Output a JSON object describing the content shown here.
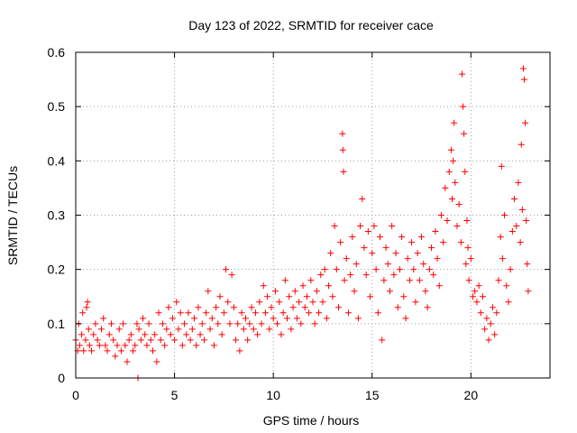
{
  "chart_data": {
    "type": "scatter",
    "title": "Day 123 of 2022, SRMTID for receiver cace",
    "xlabel": "GPS time / hours",
    "ylabel": "SRMTID / TECUs",
    "xlim": [
      0,
      24
    ],
    "ylim": [
      0,
      0.6
    ],
    "xticks": [
      0,
      5,
      10,
      15,
      20
    ],
    "yticks": [
      0,
      0.1,
      0.2,
      0.3,
      0.4,
      0.5,
      0.6
    ],
    "xtick_labels": [
      "0",
      "5",
      "10",
      "15",
      "20"
    ],
    "ytick_labels": [
      "0",
      "0.1",
      "0.2",
      "0.3",
      "0.4",
      "0.5",
      "0.6"
    ],
    "grid": true,
    "marker": "+",
    "color": "#ff0000",
    "series": [
      {
        "name": "SRMTID",
        "points": [
          [
            0.0,
            0.07
          ],
          [
            0.1,
            0.05
          ],
          [
            0.15,
            0.1
          ],
          [
            0.2,
            0.06
          ],
          [
            0.3,
            0.08
          ],
          [
            0.35,
            0.12
          ],
          [
            0.4,
            0.05
          ],
          [
            0.5,
            0.07
          ],
          [
            0.55,
            0.13
          ],
          [
            0.6,
            0.14
          ],
          [
            0.65,
            0.09
          ],
          [
            0.7,
            0.06
          ],
          [
            0.8,
            0.05
          ],
          [
            0.9,
            0.08
          ],
          [
            1.0,
            0.1
          ],
          [
            1.1,
            0.07
          ],
          [
            1.2,
            0.06
          ],
          [
            1.3,
            0.09
          ],
          [
            1.4,
            0.11
          ],
          [
            1.5,
            0.06
          ],
          [
            1.6,
            0.05
          ],
          [
            1.7,
            0.08
          ],
          [
            1.8,
            0.1
          ],
          [
            1.9,
            0.07
          ],
          [
            2.0,
            0.04
          ],
          [
            2.1,
            0.06
          ],
          [
            2.2,
            0.09
          ],
          [
            2.3,
            0.05
          ],
          [
            2.4,
            0.1
          ],
          [
            2.5,
            0.06
          ],
          [
            2.6,
            0.03
          ],
          [
            2.7,
            0.07
          ],
          [
            2.8,
            0.08
          ],
          [
            2.9,
            0.05
          ],
          [
            3.0,
            0.06
          ],
          [
            3.1,
            0.1
          ],
          [
            3.15,
            0.0
          ],
          [
            3.2,
            0.09
          ],
          [
            3.3,
            0.07
          ],
          [
            3.4,
            0.11
          ],
          [
            3.5,
            0.08
          ],
          [
            3.6,
            0.06
          ],
          [
            3.7,
            0.1
          ],
          [
            3.8,
            0.07
          ],
          [
            3.9,
            0.05
          ],
          [
            4.0,
            0.08
          ],
          [
            4.1,
            0.03
          ],
          [
            4.2,
            0.12
          ],
          [
            4.3,
            0.07
          ],
          [
            4.4,
            0.1
          ],
          [
            4.5,
            0.06
          ],
          [
            4.6,
            0.09
          ],
          [
            4.7,
            0.13
          ],
          [
            4.8,
            0.08
          ],
          [
            4.9,
            0.11
          ],
          [
            5.0,
            0.07
          ],
          [
            5.1,
            0.14
          ],
          [
            5.2,
            0.09
          ],
          [
            5.3,
            0.12
          ],
          [
            5.4,
            0.06
          ],
          [
            5.5,
            0.1
          ],
          [
            5.6,
            0.08
          ],
          [
            5.7,
            0.12
          ],
          [
            5.8,
            0.07
          ],
          [
            5.9,
            0.09
          ],
          [
            6.0,
            0.11
          ],
          [
            6.1,
            0.06
          ],
          [
            6.2,
            0.13
          ],
          [
            6.3,
            0.08
          ],
          [
            6.4,
            0.1
          ],
          [
            6.5,
            0.07
          ],
          [
            6.6,
            0.12
          ],
          [
            6.7,
            0.16
          ],
          [
            6.8,
            0.09
          ],
          [
            6.9,
            0.11
          ],
          [
            7.0,
            0.06
          ],
          [
            7.1,
            0.13
          ],
          [
            7.2,
            0.1
          ],
          [
            7.3,
            0.15
          ],
          [
            7.4,
            0.08
          ],
          [
            7.5,
            0.12
          ],
          [
            7.6,
            0.2
          ],
          [
            7.7,
            0.14
          ],
          [
            7.8,
            0.1
          ],
          [
            7.9,
            0.19
          ],
          [
            8.0,
            0.13
          ],
          [
            8.1,
            0.07
          ],
          [
            8.2,
            0.1
          ],
          [
            8.3,
            0.05
          ],
          [
            8.4,
            0.12
          ],
          [
            8.5,
            0.09
          ],
          [
            8.6,
            0.11
          ],
          [
            8.7,
            0.07
          ],
          [
            8.8,
            0.1
          ],
          [
            8.9,
            0.13
          ],
          [
            9.0,
            0.09
          ],
          [
            9.1,
            0.12
          ],
          [
            9.2,
            0.08
          ],
          [
            9.3,
            0.14
          ],
          [
            9.4,
            0.1
          ],
          [
            9.5,
            0.17
          ],
          [
            9.6,
            0.12
          ],
          [
            9.7,
            0.15
          ],
          [
            9.8,
            0.09
          ],
          [
            9.9,
            0.13
          ],
          [
            10.0,
            0.11
          ],
          [
            10.1,
            0.16
          ],
          [
            10.2,
            0.1
          ],
          [
            10.3,
            0.14
          ],
          [
            10.4,
            0.08
          ],
          [
            10.5,
            0.12
          ],
          [
            10.6,
            0.18
          ],
          [
            10.7,
            0.11
          ],
          [
            10.8,
            0.15
          ],
          [
            10.9,
            0.09
          ],
          [
            11.0,
            0.13
          ],
          [
            11.1,
            0.16
          ],
          [
            11.2,
            0.11
          ],
          [
            11.3,
            0.14
          ],
          [
            11.4,
            0.1
          ],
          [
            11.5,
            0.17
          ],
          [
            11.6,
            0.13
          ],
          [
            11.7,
            0.15
          ],
          [
            11.8,
            0.12
          ],
          [
            11.9,
            0.18
          ],
          [
            12.0,
            0.14
          ],
          [
            12.1,
            0.1
          ],
          [
            12.2,
            0.16
          ],
          [
            12.3,
            0.12
          ],
          [
            12.4,
            0.19
          ],
          [
            12.5,
            0.14
          ],
          [
            12.6,
            0.2
          ],
          [
            12.7,
            0.11
          ],
          [
            12.8,
            0.17
          ],
          [
            12.9,
            0.23
          ],
          [
            13.0,
            0.15
          ],
          [
            13.1,
            0.28
          ],
          [
            13.2,
            0.2
          ],
          [
            13.3,
            0.13
          ],
          [
            13.4,
            0.25
          ],
          [
            13.5,
            0.45
          ],
          [
            13.52,
            0.42
          ],
          [
            13.55,
            0.38
          ],
          [
            13.6,
            0.18
          ],
          [
            13.7,
            0.22
          ],
          [
            13.8,
            0.12
          ],
          [
            13.9,
            0.19
          ],
          [
            14.0,
            0.26
          ],
          [
            14.1,
            0.16
          ],
          [
            14.2,
            0.21
          ],
          [
            14.3,
            0.11
          ],
          [
            14.4,
            0.28
          ],
          [
            14.5,
            0.33
          ],
          [
            14.6,
            0.24
          ],
          [
            14.7,
            0.19
          ],
          [
            14.8,
            0.27
          ],
          [
            14.9,
            0.15
          ],
          [
            15.0,
            0.23
          ],
          [
            15.1,
            0.28
          ],
          [
            15.2,
            0.2
          ],
          [
            15.3,
            0.12
          ],
          [
            15.4,
            0.26
          ],
          [
            15.5,
            0.07
          ],
          [
            15.6,
            0.18
          ],
          [
            15.7,
            0.24
          ],
          [
            15.8,
            0.21
          ],
          [
            15.9,
            0.16
          ],
          [
            16.0,
            0.28
          ],
          [
            16.1,
            0.19
          ],
          [
            16.2,
            0.23
          ],
          [
            16.3,
            0.13
          ],
          [
            16.4,
            0.2
          ],
          [
            16.5,
            0.26
          ],
          [
            16.6,
            0.15
          ],
          [
            16.7,
            0.11
          ],
          [
            16.8,
            0.22
          ],
          [
            16.9,
            0.18
          ],
          [
            17.0,
            0.25
          ],
          [
            17.1,
            0.2
          ],
          [
            17.2,
            0.14
          ],
          [
            17.3,
            0.23
          ],
          [
            17.4,
            0.18
          ],
          [
            17.5,
            0.26
          ],
          [
            17.6,
            0.21
          ],
          [
            17.7,
            0.16
          ],
          [
            17.8,
            0.13
          ],
          [
            17.9,
            0.2
          ],
          [
            18.0,
            0.24
          ],
          [
            18.1,
            0.19
          ],
          [
            18.2,
            0.27
          ],
          [
            18.3,
            0.22
          ],
          [
            18.4,
            0.17
          ],
          [
            18.5,
            0.3
          ],
          [
            18.6,
            0.25
          ],
          [
            18.7,
            0.35
          ],
          [
            18.8,
            0.29
          ],
          [
            18.9,
            0.38
          ],
          [
            19.0,
            0.42
          ],
          [
            19.05,
            0.33
          ],
          [
            19.1,
            0.4
          ],
          [
            19.15,
            0.47
          ],
          [
            19.2,
            0.36
          ],
          [
            19.3,
            0.28
          ],
          [
            19.4,
            0.32
          ],
          [
            19.5,
            0.25
          ],
          [
            19.55,
            0.56
          ],
          [
            19.6,
            0.5
          ],
          [
            19.65,
            0.45
          ],
          [
            19.7,
            0.38
          ],
          [
            19.75,
            0.21
          ],
          [
            19.8,
            0.29
          ],
          [
            19.85,
            0.24
          ],
          [
            19.9,
            0.18
          ],
          [
            20.0,
            0.22
          ],
          [
            20.1,
            0.15
          ],
          [
            20.2,
            0.16
          ],
          [
            20.3,
            0.14
          ],
          [
            20.4,
            0.17
          ],
          [
            20.5,
            0.12
          ],
          [
            20.6,
            0.15
          ],
          [
            20.7,
            0.09
          ],
          [
            20.8,
            0.11
          ],
          [
            20.9,
            0.07
          ],
          [
            21.0,
            0.1
          ],
          [
            21.1,
            0.13
          ],
          [
            21.2,
            0.08
          ],
          [
            21.3,
            0.12
          ],
          [
            21.4,
            0.18
          ],
          [
            21.5,
            0.26
          ],
          [
            21.55,
            0.39
          ],
          [
            21.6,
            0.22
          ],
          [
            21.7,
            0.3
          ],
          [
            21.8,
            0.17
          ],
          [
            21.9,
            0.14
          ],
          [
            22.0,
            0.2
          ],
          [
            22.1,
            0.27
          ],
          [
            22.2,
            0.33
          ],
          [
            22.3,
            0.28
          ],
          [
            22.4,
            0.36
          ],
          [
            22.5,
            0.25
          ],
          [
            22.55,
            0.43
          ],
          [
            22.6,
            0.31
          ],
          [
            22.65,
            0.57
          ],
          [
            22.7,
            0.55
          ],
          [
            22.75,
            0.47
          ],
          [
            22.8,
            0.29
          ],
          [
            22.85,
            0.21
          ],
          [
            22.9,
            0.16
          ]
        ]
      }
    ]
  }
}
